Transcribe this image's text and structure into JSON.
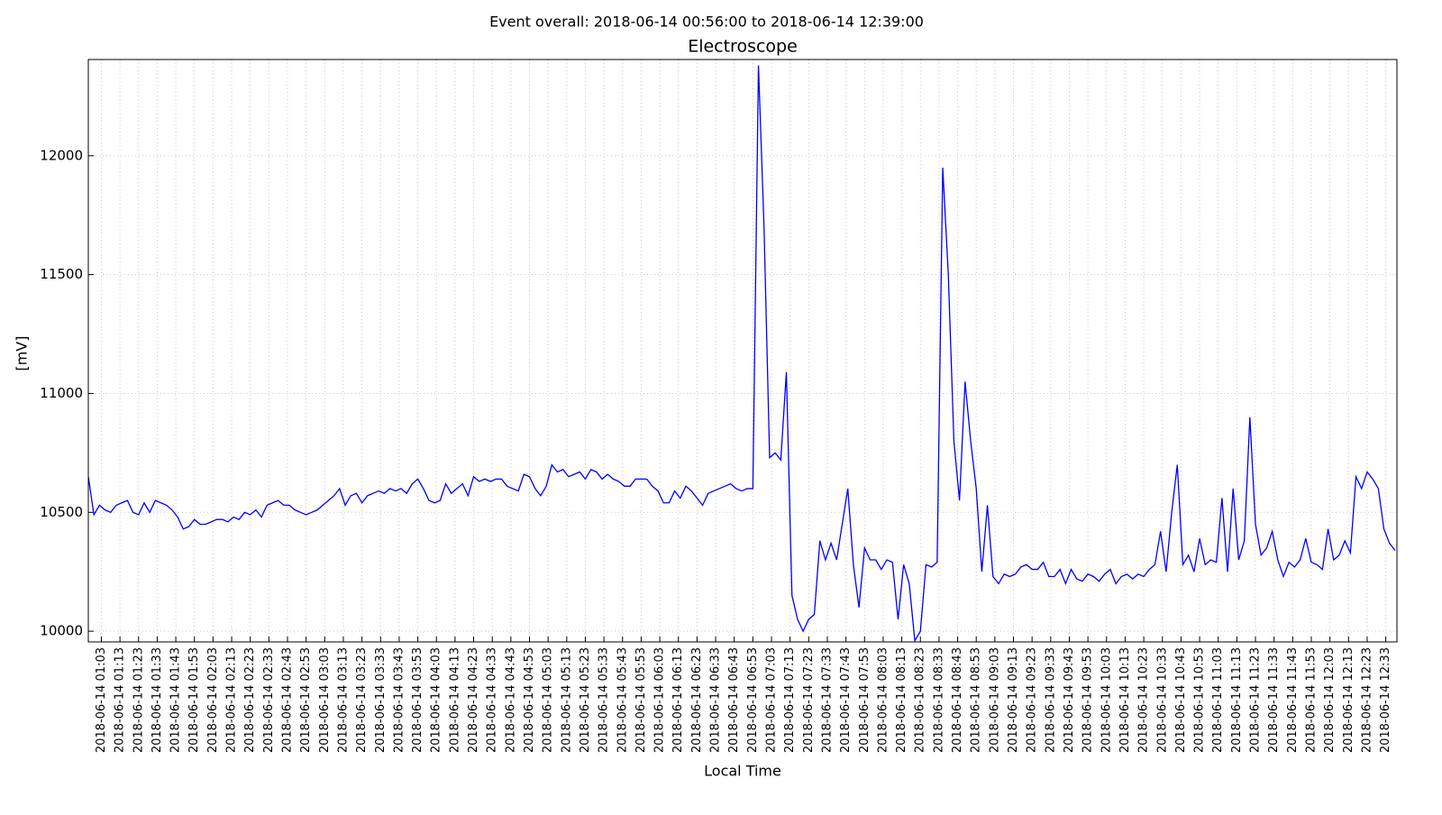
{
  "chart_data": {
    "type": "line",
    "subtitle": "Event overall: 2018-06-14 00:56:00 to 2018-06-14 12:39:00",
    "title": "Electroscope",
    "x_label": "Local Time",
    "y_label": "[mV]",
    "xlim": [
      "2018-06-14 00:56",
      "2018-06-14 12:39"
    ],
    "ylim": [
      9955,
      12405
    ],
    "yticks": [
      10000,
      10500,
      11000,
      11500,
      12000
    ],
    "grid": true,
    "xticks": [
      "2018-06-14 01:03",
      "2018-06-14 01:13",
      "2018-06-14 01:23",
      "2018-06-14 01:33",
      "2018-06-14 01:43",
      "2018-06-14 01:53",
      "2018-06-14 02:03",
      "2018-06-14 02:13",
      "2018-06-14 02:23",
      "2018-06-14 02:33",
      "2018-06-14 02:43",
      "2018-06-14 02:53",
      "2018-06-14 03:03",
      "2018-06-14 03:13",
      "2018-06-14 03:23",
      "2018-06-14 03:33",
      "2018-06-14 03:43",
      "2018-06-14 03:53",
      "2018-06-14 04:03",
      "2018-06-14 04:13",
      "2018-06-14 04:23",
      "2018-06-14 04:33",
      "2018-06-14 04:43",
      "2018-06-14 04:53",
      "2018-06-14 05:03",
      "2018-06-14 05:13",
      "2018-06-14 05:23",
      "2018-06-14 05:33",
      "2018-06-14 05:43",
      "2018-06-14 05:53",
      "2018-06-14 06:03",
      "2018-06-14 06:13",
      "2018-06-14 06:23",
      "2018-06-14 06:33",
      "2018-06-14 06:43",
      "2018-06-14 06:53",
      "2018-06-14 07:03",
      "2018-06-14 07:13",
      "2018-06-14 07:23",
      "2018-06-14 07:33",
      "2018-06-14 07:43",
      "2018-06-14 07:53",
      "2018-06-14 08:03",
      "2018-06-14 08:13",
      "2018-06-14 08:23",
      "2018-06-14 08:33",
      "2018-06-14 08:43",
      "2018-06-14 08:53",
      "2018-06-14 09:03",
      "2018-06-14 09:13",
      "2018-06-14 09:23",
      "2018-06-14 09:33",
      "2018-06-14 09:43",
      "2018-06-14 09:53",
      "2018-06-14 10:03",
      "2018-06-14 10:13",
      "2018-06-14 10:23",
      "2018-06-14 10:33",
      "2018-06-14 10:43",
      "2018-06-14 10:53",
      "2018-06-14 11:03",
      "2018-06-14 11:13",
      "2018-06-14 11:23",
      "2018-06-14 11:33",
      "2018-06-14 11:43",
      "2018-06-14 11:53",
      "2018-06-14 12:03",
      "2018-06-14 12:13",
      "2018-06-14 12:23",
      "2018-06-14 12:33"
    ],
    "x": [
      "2018-06-14 00:56",
      "2018-06-14 00:59",
      "2018-06-14 01:02",
      "2018-06-14 01:05",
      "2018-06-14 01:08",
      "2018-06-14 01:11",
      "2018-06-14 01:14",
      "2018-06-14 01:17",
      "2018-06-14 01:20",
      "2018-06-14 01:23",
      "2018-06-14 01:26",
      "2018-06-14 01:29",
      "2018-06-14 01:32",
      "2018-06-14 01:35",
      "2018-06-14 01:38",
      "2018-06-14 01:41",
      "2018-06-14 01:44",
      "2018-06-14 01:47",
      "2018-06-14 01:50",
      "2018-06-14 01:53",
      "2018-06-14 01:56",
      "2018-06-14 01:59",
      "2018-06-14 02:02",
      "2018-06-14 02:05",
      "2018-06-14 02:08",
      "2018-06-14 02:11",
      "2018-06-14 02:14",
      "2018-06-14 02:17",
      "2018-06-14 02:20",
      "2018-06-14 02:23",
      "2018-06-14 02:26",
      "2018-06-14 02:29",
      "2018-06-14 02:32",
      "2018-06-14 02:35",
      "2018-06-14 02:38",
      "2018-06-14 02:41",
      "2018-06-14 02:44",
      "2018-06-14 02:47",
      "2018-06-14 02:50",
      "2018-06-14 02:53",
      "2018-06-14 02:56",
      "2018-06-14 02:59",
      "2018-06-14 03:02",
      "2018-06-14 03:05",
      "2018-06-14 03:08",
      "2018-06-14 03:11",
      "2018-06-14 03:14",
      "2018-06-14 03:17",
      "2018-06-14 03:20",
      "2018-06-14 03:23",
      "2018-06-14 03:26",
      "2018-06-14 03:29",
      "2018-06-14 03:32",
      "2018-06-14 03:35",
      "2018-06-14 03:38",
      "2018-06-14 03:41",
      "2018-06-14 03:44",
      "2018-06-14 03:47",
      "2018-06-14 03:50",
      "2018-06-14 03:53",
      "2018-06-14 03:56",
      "2018-06-14 03:59",
      "2018-06-14 04:02",
      "2018-06-14 04:05",
      "2018-06-14 04:08",
      "2018-06-14 04:11",
      "2018-06-14 04:14",
      "2018-06-14 04:17",
      "2018-06-14 04:20",
      "2018-06-14 04:23",
      "2018-06-14 04:26",
      "2018-06-14 04:29",
      "2018-06-14 04:32",
      "2018-06-14 04:35",
      "2018-06-14 04:38",
      "2018-06-14 04:41",
      "2018-06-14 04:44",
      "2018-06-14 04:47",
      "2018-06-14 04:50",
      "2018-06-14 04:53",
      "2018-06-14 04:56",
      "2018-06-14 04:59",
      "2018-06-14 05:02",
      "2018-06-14 05:05",
      "2018-06-14 05:08",
      "2018-06-14 05:11",
      "2018-06-14 05:14",
      "2018-06-14 05:17",
      "2018-06-14 05:20",
      "2018-06-14 05:23",
      "2018-06-14 05:26",
      "2018-06-14 05:29",
      "2018-06-14 05:32",
      "2018-06-14 05:35",
      "2018-06-14 05:38",
      "2018-06-14 05:41",
      "2018-06-14 05:44",
      "2018-06-14 05:47",
      "2018-06-14 05:50",
      "2018-06-14 05:53",
      "2018-06-14 05:56",
      "2018-06-14 05:59",
      "2018-06-14 06:02",
      "2018-06-14 06:05",
      "2018-06-14 06:08",
      "2018-06-14 06:11",
      "2018-06-14 06:14",
      "2018-06-14 06:17",
      "2018-06-14 06:20",
      "2018-06-14 06:23",
      "2018-06-14 06:26",
      "2018-06-14 06:29",
      "2018-06-14 06:32",
      "2018-06-14 06:35",
      "2018-06-14 06:38",
      "2018-06-14 06:41",
      "2018-06-14 06:44",
      "2018-06-14 06:47",
      "2018-06-14 06:50",
      "2018-06-14 06:53",
      "2018-06-14 06:56",
      "2018-06-14 06:59",
      "2018-06-14 07:02",
      "2018-06-14 07:05",
      "2018-06-14 07:08",
      "2018-06-14 07:11",
      "2018-06-14 07:14",
      "2018-06-14 07:17",
      "2018-06-14 07:20",
      "2018-06-14 07:23",
      "2018-06-14 07:26",
      "2018-06-14 07:29",
      "2018-06-14 07:32",
      "2018-06-14 07:35",
      "2018-06-14 07:38",
      "2018-06-14 07:41",
      "2018-06-14 07:44",
      "2018-06-14 07:47",
      "2018-06-14 07:50",
      "2018-06-14 07:53",
      "2018-06-14 07:56",
      "2018-06-14 07:59",
      "2018-06-14 08:02",
      "2018-06-14 08:05",
      "2018-06-14 08:08",
      "2018-06-14 08:11",
      "2018-06-14 08:14",
      "2018-06-14 08:17",
      "2018-06-14 08:20",
      "2018-06-14 08:23",
      "2018-06-14 08:26",
      "2018-06-14 08:29",
      "2018-06-14 08:32",
      "2018-06-14 08:35",
      "2018-06-14 08:38",
      "2018-06-14 08:41",
      "2018-06-14 08:44",
      "2018-06-14 08:47",
      "2018-06-14 08:50",
      "2018-06-14 08:53",
      "2018-06-14 08:56",
      "2018-06-14 08:59",
      "2018-06-14 09:02",
      "2018-06-14 09:05",
      "2018-06-14 09:08",
      "2018-06-14 09:11",
      "2018-06-14 09:14",
      "2018-06-14 09:17",
      "2018-06-14 09:20",
      "2018-06-14 09:23",
      "2018-06-14 09:26",
      "2018-06-14 09:29",
      "2018-06-14 09:32",
      "2018-06-14 09:35",
      "2018-06-14 09:38",
      "2018-06-14 09:41",
      "2018-06-14 09:44",
      "2018-06-14 09:47",
      "2018-06-14 09:50",
      "2018-06-14 09:53",
      "2018-06-14 09:56",
      "2018-06-14 09:59",
      "2018-06-14 10:02",
      "2018-06-14 10:05",
      "2018-06-14 10:08",
      "2018-06-14 10:11",
      "2018-06-14 10:14",
      "2018-06-14 10:17",
      "2018-06-14 10:20",
      "2018-06-14 10:23",
      "2018-06-14 10:26",
      "2018-06-14 10:29",
      "2018-06-14 10:32",
      "2018-06-14 10:35",
      "2018-06-14 10:38",
      "2018-06-14 10:41",
      "2018-06-14 10:44",
      "2018-06-14 10:47",
      "2018-06-14 10:50",
      "2018-06-14 10:53",
      "2018-06-14 10:56",
      "2018-06-14 10:59",
      "2018-06-14 11:02",
      "2018-06-14 11:05",
      "2018-06-14 11:08",
      "2018-06-14 11:11",
      "2018-06-14 11:14",
      "2018-06-14 11:17",
      "2018-06-14 11:20",
      "2018-06-14 11:23",
      "2018-06-14 11:26",
      "2018-06-14 11:29",
      "2018-06-14 11:32",
      "2018-06-14 11:35",
      "2018-06-14 11:38",
      "2018-06-14 11:41",
      "2018-06-14 11:44",
      "2018-06-14 11:47",
      "2018-06-14 11:50",
      "2018-06-14 11:53",
      "2018-06-14 11:56",
      "2018-06-14 11:59",
      "2018-06-14 12:02",
      "2018-06-14 12:05",
      "2018-06-14 12:08",
      "2018-06-14 12:11",
      "2018-06-14 12:14",
      "2018-06-14 12:17",
      "2018-06-14 12:20",
      "2018-06-14 12:23",
      "2018-06-14 12:26",
      "2018-06-14 12:29",
      "2018-06-14 12:32",
      "2018-06-14 12:35",
      "2018-06-14 12:38"
    ],
    "series": [
      {
        "color": "#0000ff",
        "values": [
          10650,
          10490,
          10530,
          10510,
          10500,
          10530,
          10540,
          10550,
          10500,
          10490,
          10540,
          10500,
          10550,
          10540,
          10530,
          10510,
          10480,
          10430,
          10440,
          10470,
          10450,
          10450,
          10460,
          10470,
          10470,
          10460,
          10480,
          10470,
          10500,
          10490,
          10510,
          10480,
          10530,
          10540,
          10550,
          10530,
          10530,
          10510,
          10500,
          10490,
          10500,
          10510,
          10530,
          10550,
          10570,
          10600,
          10530,
          10570,
          10580,
          10540,
          10570,
          10580,
          10590,
          10580,
          10600,
          10590,
          10600,
          10580,
          10620,
          10640,
          10600,
          10550,
          10540,
          10550,
          10620,
          10580,
          10600,
          10620,
          10570,
          10650,
          10630,
          10640,
          10630,
          10640,
          10640,
          10610,
          10600,
          10590,
          10660,
          10650,
          10600,
          10570,
          10610,
          10700,
          10670,
          10680,
          10650,
          10660,
          10670,
          10640,
          10680,
          10670,
          10640,
          10660,
          10640,
          10630,
          10610,
          10610,
          10640,
          10640,
          10640,
          10610,
          10590,
          10540,
          10540,
          10590,
          10560,
          10610,
          10590,
          10560,
          10530,
          10580,
          10590,
          10600,
          10610,
          10620,
          10600,
          10590,
          10600,
          10600,
          12380,
          11700,
          10730,
          10750,
          10720,
          11090,
          10150,
          10050,
          10000,
          10050,
          10070,
          10380,
          10300,
          10370,
          10300,
          10450,
          10600,
          10280,
          10100,
          10350,
          10300,
          10300,
          10260,
          10300,
          10290,
          10050,
          10280,
          10200,
          9960,
          10000,
          10280,
          10270,
          10290,
          11950,
          11500,
          10800,
          10550,
          11050,
          10800,
          10600,
          10250,
          10530,
          10230,
          10200,
          10240,
          10230,
          10240,
          10270,
          10280,
          10260,
          10260,
          10290,
          10230,
          10230,
          10260,
          10200,
          10260,
          10220,
          10210,
          10240,
          10230,
          10210,
          10240,
          10260,
          10200,
          10230,
          10240,
          10220,
          10240,
          10230,
          10260,
          10280,
          10420,
          10250,
          10500,
          10700,
          10280,
          10320,
          10250,
          10390,
          10280,
          10300,
          10290,
          10560,
          10250,
          10600,
          10300,
          10380,
          10900,
          10450,
          10320,
          10350,
          10420,
          10300,
          10230,
          10290,
          10270,
          10300,
          10390,
          10290,
          10280,
          10260,
          10430,
          10300,
          10320,
          10380,
          10330,
          10650,
          10600,
          10670,
          10640,
          10600,
          10430,
          10370,
          10340
        ]
      }
    ]
  }
}
